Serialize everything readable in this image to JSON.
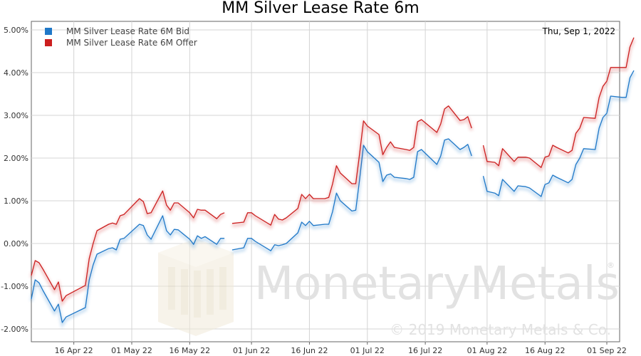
{
  "chart_data": {
    "type": "line",
    "title": "MM Silver Lease Rate 6m",
    "date_label": "Thu, Sep 1, 2022",
    "xlabel": "",
    "ylabel": "",
    "ylim": [
      -2.3,
      5.2
    ],
    "y_ticks": [
      "-2.00%",
      "-1.00%",
      "0.00%",
      "1.00%",
      "2.00%",
      "3.00%",
      "4.00%",
      "5.00%"
    ],
    "x_ticks": [
      "16 Apr 22",
      "01 May 22",
      "16 May 22",
      "01 Jun 22",
      "16 Jun 22",
      "01 Jul 22",
      "16 Jul 22",
      "01 Aug 22",
      "16 Aug 22",
      "01 Sep 22"
    ],
    "x_range": [
      "2022-04-05",
      "2022-09-01"
    ],
    "grid": true,
    "legend_position": "top-left",
    "series": [
      {
        "name": "MM Silver Lease Rate 6M Bid",
        "color": "#1f78c8",
        "points": [
          [
            "2022-04-05",
            -1.3
          ],
          [
            "2022-04-06",
            -0.85
          ],
          [
            "2022-04-07",
            -0.92
          ],
          [
            "2022-04-08",
            -1.1
          ],
          [
            "2022-04-11",
            -1.58
          ],
          [
            "2022-04-12",
            -1.42
          ],
          [
            "2022-04-13",
            -1.85
          ],
          [
            "2022-04-14",
            -1.72
          ],
          [
            "2022-04-19",
            -1.5
          ],
          [
            "2022-04-20",
            -0.85
          ],
          [
            "2022-04-21",
            -0.5
          ],
          [
            "2022-04-22",
            -0.25
          ],
          [
            "2022-04-25",
            -0.12
          ],
          [
            "2022-04-26",
            -0.1
          ],
          [
            "2022-04-27",
            -0.15
          ],
          [
            "2022-04-28",
            0.1
          ],
          [
            "2022-04-29",
            0.12
          ],
          [
            "2022-05-03",
            0.45
          ],
          [
            "2022-05-04",
            0.42
          ],
          [
            "2022-05-05",
            0.2
          ],
          [
            "2022-05-06",
            0.1
          ],
          [
            "2022-05-09",
            0.65
          ],
          [
            "2022-05-10",
            0.3
          ],
          [
            "2022-05-11",
            0.2
          ],
          [
            "2022-05-12",
            0.33
          ],
          [
            "2022-05-13",
            0.32
          ],
          [
            "2022-05-16",
            0.1
          ],
          [
            "2022-05-17",
            -0.02
          ],
          [
            "2022-05-18",
            0.18
          ],
          [
            "2022-05-19",
            0.12
          ],
          [
            "2022-05-20",
            0.16
          ],
          [
            "2022-05-23",
            -0.02
          ],
          [
            "2022-05-24",
            0.12
          ],
          [
            "2022-05-25",
            0.12
          ],
          null,
          [
            "2022-05-27",
            -0.15
          ],
          [
            "2022-05-30",
            -0.1
          ],
          [
            "2022-05-31",
            0.12
          ],
          [
            "2022-06-01",
            0.12
          ],
          [
            "2022-06-02",
            0.05
          ],
          [
            "2022-06-06",
            -0.17
          ],
          [
            "2022-06-07",
            -0.03
          ],
          [
            "2022-06-08",
            -0.05
          ],
          [
            "2022-06-09",
            -0.03
          ],
          [
            "2022-06-10",
            0.0
          ],
          [
            "2022-06-13",
            0.25
          ],
          [
            "2022-06-14",
            0.5
          ],
          [
            "2022-06-15",
            0.42
          ],
          [
            "2022-06-16",
            0.52
          ],
          [
            "2022-06-17",
            0.42
          ],
          [
            "2022-06-20",
            0.45
          ],
          [
            "2022-06-21",
            0.45
          ],
          [
            "2022-06-22",
            0.75
          ],
          [
            "2022-06-23",
            1.18
          ],
          [
            "2022-06-24",
            1.0
          ],
          [
            "2022-06-27",
            0.76
          ],
          [
            "2022-06-28",
            0.78
          ],
          [
            "2022-06-29",
            1.5
          ],
          [
            "2022-06-30",
            2.3
          ],
          [
            "2022-07-01",
            2.15
          ],
          [
            "2022-07-04",
            1.9
          ],
          [
            "2022-07-05",
            1.45
          ],
          [
            "2022-07-06",
            1.6
          ],
          [
            "2022-07-07",
            1.63
          ],
          [
            "2022-07-08",
            1.55
          ],
          [
            "2022-07-11",
            1.52
          ],
          [
            "2022-07-12",
            1.5
          ],
          [
            "2022-07-13",
            1.55
          ],
          [
            "2022-07-14",
            2.15
          ],
          [
            "2022-07-15",
            2.2
          ],
          [
            "2022-07-19",
            1.85
          ],
          [
            "2022-07-20",
            2.05
          ],
          [
            "2022-07-21",
            2.42
          ],
          [
            "2022-07-22",
            2.45
          ],
          [
            "2022-07-25",
            2.2
          ],
          [
            "2022-07-26",
            2.25
          ],
          [
            "2022-07-27",
            2.32
          ],
          [
            "2022-07-28",
            2.05
          ],
          null,
          [
            "2022-07-31",
            1.58
          ],
          [
            "2022-08-01",
            1.22
          ],
          [
            "2022-08-03",
            1.18
          ],
          [
            "2022-08-04",
            1.12
          ],
          [
            "2022-08-05",
            1.5
          ],
          [
            "2022-08-08",
            1.22
          ],
          [
            "2022-08-09",
            1.35
          ],
          [
            "2022-08-11",
            1.33
          ],
          [
            "2022-08-12",
            1.3
          ],
          [
            "2022-08-15",
            1.1
          ],
          [
            "2022-08-16",
            1.38
          ],
          [
            "2022-08-17",
            1.42
          ],
          [
            "2022-08-18",
            1.6
          ],
          [
            "2022-08-19",
            1.55
          ],
          [
            "2022-08-22",
            1.42
          ],
          [
            "2022-08-23",
            1.5
          ],
          [
            "2022-08-24",
            1.85
          ],
          [
            "2022-08-25",
            2.0
          ],
          [
            "2022-08-26",
            2.22
          ],
          [
            "2022-08-29",
            2.2
          ],
          [
            "2022-08-30",
            2.7
          ],
          [
            "2022-08-31",
            2.95
          ],
          [
            "2022-09-01",
            3.05
          ],
          [
            "2022-09-02",
            3.45
          ],
          [
            "2022-09-05",
            3.42
          ],
          [
            "2022-09-06",
            3.42
          ],
          [
            "2022-09-07",
            3.88
          ],
          [
            "2022-09-08",
            4.05
          ]
        ]
      },
      {
        "name": "MM Silver Lease Rate 6M Offer",
        "color": "#cc1f1f",
        "points": [
          [
            "2022-04-05",
            -0.75
          ],
          [
            "2022-04-06",
            -0.4
          ],
          [
            "2022-04-07",
            -0.45
          ],
          [
            "2022-04-08",
            -0.6
          ],
          [
            "2022-04-11",
            -1.08
          ],
          [
            "2022-04-12",
            -0.9
          ],
          [
            "2022-04-13",
            -1.35
          ],
          [
            "2022-04-14",
            -1.22
          ],
          [
            "2022-04-19",
            -0.98
          ],
          [
            "2022-04-20",
            -0.35
          ],
          [
            "2022-04-21",
            0.0
          ],
          [
            "2022-04-22",
            0.3
          ],
          [
            "2022-04-25",
            0.45
          ],
          [
            "2022-04-26",
            0.48
          ],
          [
            "2022-04-27",
            0.45
          ],
          [
            "2022-04-28",
            0.65
          ],
          [
            "2022-04-29",
            0.68
          ],
          [
            "2022-05-03",
            1.05
          ],
          [
            "2022-05-04",
            0.98
          ],
          [
            "2022-05-05",
            0.7
          ],
          [
            "2022-05-06",
            0.72
          ],
          [
            "2022-05-09",
            1.23
          ],
          [
            "2022-05-10",
            0.9
          ],
          [
            "2022-05-11",
            0.78
          ],
          [
            "2022-05-12",
            0.95
          ],
          [
            "2022-05-13",
            0.95
          ],
          [
            "2022-05-16",
            0.72
          ],
          [
            "2022-05-17",
            0.6
          ],
          [
            "2022-05-18",
            0.8
          ],
          [
            "2022-05-19",
            0.78
          ],
          [
            "2022-05-20",
            0.78
          ],
          [
            "2022-05-23",
            0.58
          ],
          [
            "2022-05-24",
            0.68
          ],
          [
            "2022-05-25",
            0.72
          ],
          null,
          [
            "2022-05-27",
            0.47
          ],
          [
            "2022-05-30",
            0.5
          ],
          [
            "2022-05-31",
            0.72
          ],
          [
            "2022-06-01",
            0.72
          ],
          [
            "2022-06-02",
            0.65
          ],
          [
            "2022-06-06",
            0.43
          ],
          [
            "2022-06-07",
            0.68
          ],
          [
            "2022-06-08",
            0.57
          ],
          [
            "2022-06-09",
            0.55
          ],
          [
            "2022-06-10",
            0.6
          ],
          [
            "2022-06-13",
            0.82
          ],
          [
            "2022-06-14",
            1.15
          ],
          [
            "2022-06-15",
            1.05
          ],
          [
            "2022-06-16",
            1.15
          ],
          [
            "2022-06-17",
            1.05
          ],
          [
            "2022-06-20",
            1.05
          ],
          [
            "2022-06-21",
            1.08
          ],
          [
            "2022-06-22",
            1.4
          ],
          [
            "2022-06-23",
            1.82
          ],
          [
            "2022-06-24",
            1.65
          ],
          [
            "2022-06-27",
            1.4
          ],
          [
            "2022-06-28",
            1.4
          ],
          [
            "2022-06-29",
            2.1
          ],
          [
            "2022-06-30",
            2.87
          ],
          [
            "2022-07-01",
            2.75
          ],
          [
            "2022-07-04",
            2.55
          ],
          [
            "2022-07-05",
            2.08
          ],
          [
            "2022-07-06",
            2.25
          ],
          [
            "2022-07-07",
            2.38
          ],
          [
            "2022-07-08",
            2.25
          ],
          [
            "2022-07-11",
            2.2
          ],
          [
            "2022-07-12",
            2.18
          ],
          [
            "2022-07-13",
            2.25
          ],
          [
            "2022-07-14",
            2.85
          ],
          [
            "2022-07-15",
            2.9
          ],
          [
            "2022-07-19",
            2.6
          ],
          [
            "2022-07-20",
            2.8
          ],
          [
            "2022-07-21",
            3.15
          ],
          [
            "2022-07-22",
            3.22
          ],
          [
            "2022-07-25",
            2.88
          ],
          [
            "2022-07-26",
            2.9
          ],
          [
            "2022-07-27",
            2.97
          ],
          [
            "2022-07-28",
            2.7
          ],
          null,
          [
            "2022-07-31",
            2.3
          ],
          [
            "2022-08-01",
            1.92
          ],
          [
            "2022-08-03",
            1.9
          ],
          [
            "2022-08-04",
            1.82
          ],
          [
            "2022-08-05",
            2.22
          ],
          [
            "2022-08-08",
            1.92
          ],
          [
            "2022-08-09",
            2.02
          ],
          [
            "2022-08-11",
            2.02
          ],
          [
            "2022-08-12",
            2.0
          ],
          [
            "2022-08-15",
            1.78
          ],
          [
            "2022-08-16",
            2.02
          ],
          [
            "2022-08-17",
            2.05
          ],
          [
            "2022-08-18",
            2.3
          ],
          [
            "2022-08-19",
            2.25
          ],
          [
            "2022-08-22",
            2.12
          ],
          [
            "2022-08-23",
            2.18
          ],
          [
            "2022-08-24",
            2.58
          ],
          [
            "2022-08-25",
            2.7
          ],
          [
            "2022-08-26",
            2.95
          ],
          [
            "2022-08-29",
            2.93
          ],
          [
            "2022-08-30",
            3.42
          ],
          [
            "2022-08-31",
            3.68
          ],
          [
            "2022-09-01",
            3.8
          ],
          [
            "2022-09-02",
            4.12
          ],
          [
            "2022-09-05",
            4.12
          ],
          [
            "2022-09-06",
            4.12
          ],
          [
            "2022-09-07",
            4.6
          ],
          [
            "2022-09-08",
            4.82
          ]
        ]
      }
    ]
  },
  "watermark": {
    "brand": "MonetaryMetals",
    "registered": "®",
    "copyright": "© 2019 Monetary Metals & Co.",
    "logo_icon": "ingot-logo-icon"
  }
}
